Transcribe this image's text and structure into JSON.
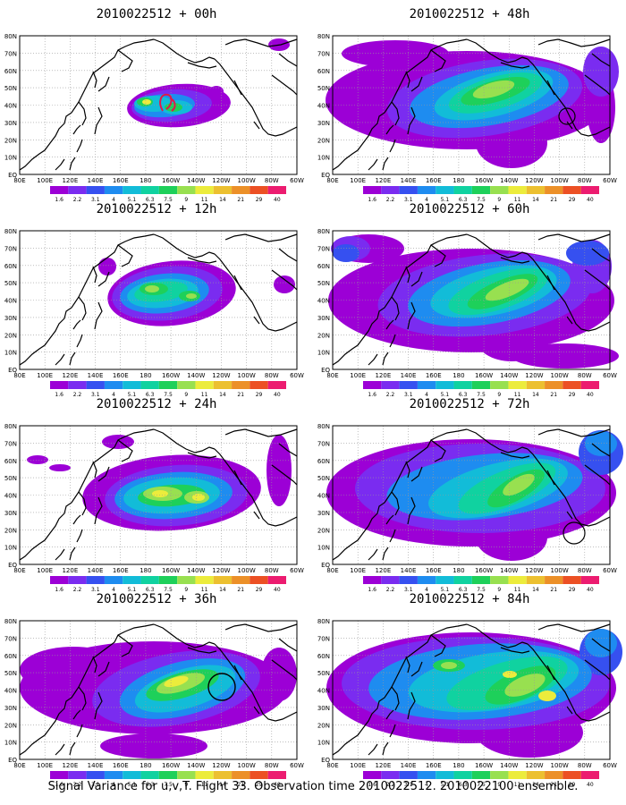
{
  "caption": "Signal Variance for u,v,T. Flight 33. Observation time 2010022512. 2010022100 ensemble.",
  "palette": [
    "#9c00d6",
    "#7a2cf0",
    "#3650f0",
    "#1e8cf0",
    "#12bcd8",
    "#10d2a0",
    "#1ed05a",
    "#98e050",
    "#ecec3c",
    "#ecc030",
    "#ec9028",
    "#ec5024",
    "#ec1c70"
  ],
  "colorbar_labels": [
    "1.6",
    "2.2",
    "3.1",
    "4",
    "5.1",
    "6.3",
    "7.5",
    "9",
    "11",
    "14",
    "21",
    "29",
    "40"
  ],
  "lon_labels": [
    "80E",
    "100E",
    "120E",
    "140E",
    "160E",
    "180",
    "160W",
    "140W",
    "120W",
    "100W",
    "80W",
    "60W"
  ],
  "lat_labels": [
    "EQ",
    "10N",
    "20N",
    "30N",
    "40N",
    "50N",
    "60N",
    "70N",
    "80N"
  ],
  "panels": [
    {
      "title": "2010022512 + 00h"
    },
    {
      "title": "2010022512 + 12h"
    },
    {
      "title": "2010022512 + 24h"
    },
    {
      "title": "2010022512 + 36h"
    },
    {
      "title": "2010022512 + 48h"
    },
    {
      "title": "2010022512 + 60h"
    },
    {
      "title": "2010022512 + 72h"
    },
    {
      "title": "2010022512 + 84h"
    }
  ]
}
